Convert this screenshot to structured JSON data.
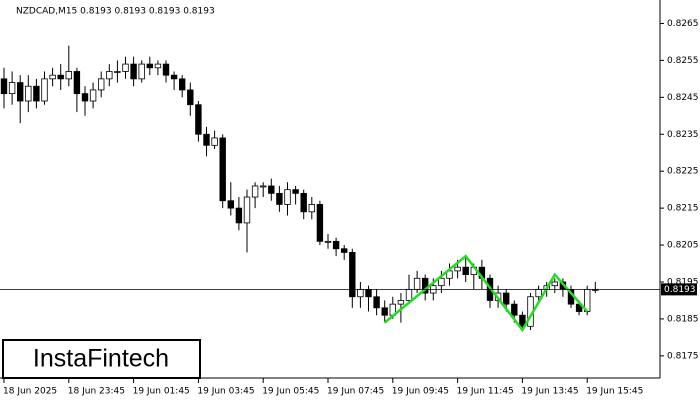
{
  "chart_data": {
    "type": "candlestick",
    "title": "NZDCAD,M15  0.8193 0.8193 0.8193 0.8193",
    "watermark": "InstaFintech",
    "categories": [
      "18 Jun 2025",
      null,
      null,
      null,
      null,
      null,
      null,
      null,
      "18 Jun 23:45",
      null,
      null,
      null,
      null,
      null,
      null,
      null,
      "19 Jun 01:45",
      null,
      null,
      null,
      null,
      null,
      null,
      null,
      "19 Jun 03:45",
      null,
      null,
      null,
      null,
      null,
      null,
      null,
      "19 Jun 05:45",
      null,
      null,
      null,
      null,
      null,
      null,
      null,
      "19 Jun 07:45",
      null,
      null,
      null,
      null,
      null,
      null,
      null,
      "19 Jun 09:45",
      null,
      null,
      null,
      null,
      null,
      null,
      null,
      "19 Jun 11:45",
      null,
      null,
      null,
      null,
      null,
      null,
      null,
      "19 Jun 13:45",
      null,
      null,
      null,
      null,
      null,
      null,
      null,
      "19 Jun 15:45",
      null
    ],
    "open": [
      0.825,
      0.8246,
      0.8249,
      0.8244,
      0.8248,
      0.8244,
      0.825,
      0.8251,
      0.825,
      0.8252,
      0.8246,
      0.8244,
      0.8247,
      0.825,
      0.8252,
      0.8252,
      0.8254,
      0.825,
      0.8254,
      0.8253,
      0.8254,
      0.8251,
      0.825,
      0.8247,
      0.8243,
      0.8235,
      0.8232,
      0.8234,
      0.8217,
      0.8215,
      0.8211,
      0.8218,
      0.8221,
      0.8221,
      0.8219,
      0.8216,
      0.822,
      0.8219,
      0.8214,
      0.8216,
      0.8206,
      0.8206,
      0.8204,
      0.8203,
      0.8191,
      0.8193,
      0.8191,
      0.8188,
      0.8186,
      0.8189,
      0.819,
      0.8193,
      0.8196,
      0.8192,
      0.8194,
      0.8196,
      0.8198,
      0.8199,
      0.8197,
      0.8199,
      0.8196,
      0.819,
      0.8192,
      0.8189,
      0.8186,
      0.8183,
      0.8191,
      0.8193,
      0.8194,
      0.8195,
      0.8193,
      0.8189,
      0.8187,
      0.8193
    ],
    "high": [
      0.8253,
      0.8252,
      0.8251,
      0.8251,
      0.825,
      0.8252,
      0.8253,
      0.8254,
      0.8259,
      0.8253,
      0.8248,
      0.8249,
      0.8252,
      0.8254,
      0.8255,
      0.8256,
      0.8256,
      0.8255,
      0.8256,
      0.8255,
      0.8255,
      0.8252,
      0.8251,
      0.8249,
      0.8244,
      0.8237,
      0.8236,
      0.8235,
      0.8222,
      0.8218,
      0.822,
      0.8222,
      0.8222,
      0.8223,
      0.8221,
      0.8222,
      0.8221,
      0.822,
      0.8218,
      0.8217,
      0.8208,
      0.8207,
      0.8205,
      0.8204,
      0.8195,
      0.8194,
      0.8193,
      0.819,
      0.8191,
      0.8192,
      0.8197,
      0.8198,
      0.8197,
      0.8196,
      0.8198,
      0.82,
      0.8201,
      0.8202,
      0.82,
      0.8201,
      0.8197,
      0.8194,
      0.8193,
      0.819,
      0.8187,
      0.8192,
      0.8194,
      0.8195,
      0.8196,
      0.8196,
      0.8194,
      0.819,
      0.8194,
      0.8195
    ],
    "low": [
      0.8242,
      0.8243,
      0.8238,
      0.8241,
      0.8242,
      0.8243,
      0.8248,
      0.8247,
      0.8248,
      0.8241,
      0.824,
      0.8242,
      0.8245,
      0.8248,
      0.8249,
      0.825,
      0.8248,
      0.8249,
      0.8251,
      0.8251,
      0.8249,
      0.8247,
      0.8245,
      0.824,
      0.8233,
      0.8229,
      0.8231,
      0.8215,
      0.8213,
      0.8209,
      0.8203,
      0.8215,
      0.8218,
      0.8217,
      0.8214,
      0.8213,
      0.8216,
      0.8212,
      0.8212,
      0.8205,
      0.8204,
      0.8202,
      0.8201,
      0.8188,
      0.8188,
      0.8187,
      0.8186,
      0.8184,
      0.8185,
      0.8184,
      0.8189,
      0.8192,
      0.819,
      0.819,
      0.8192,
      0.8194,
      0.8196,
      0.8195,
      0.8193,
      0.8193,
      0.8188,
      0.8188,
      0.8187,
      0.8184,
      0.8182,
      0.8182,
      0.819,
      0.8191,
      0.8192,
      0.8191,
      0.8188,
      0.8186,
      0.8186,
      0.8192
    ],
    "close": [
      0.8246,
      0.8249,
      0.8244,
      0.8248,
      0.8244,
      0.825,
      0.8251,
      0.825,
      0.8252,
      0.8246,
      0.8244,
      0.8247,
      0.825,
      0.8252,
      0.8252,
      0.8254,
      0.825,
      0.8254,
      0.8253,
      0.8254,
      0.8251,
      0.825,
      0.8247,
      0.8243,
      0.8235,
      0.8232,
      0.8234,
      0.8217,
      0.8215,
      0.8211,
      0.8218,
      0.8221,
      0.8221,
      0.8219,
      0.8216,
      0.822,
      0.8219,
      0.8214,
      0.8216,
      0.8206,
      0.8206,
      0.8204,
      0.8203,
      0.8191,
      0.8193,
      0.8191,
      0.8188,
      0.8186,
      0.8189,
      0.819,
      0.8193,
      0.8196,
      0.8192,
      0.8194,
      0.8196,
      0.8198,
      0.8199,
      0.8197,
      0.8199,
      0.8196,
      0.819,
      0.8192,
      0.8189,
      0.8186,
      0.8183,
      0.8191,
      0.8193,
      0.8194,
      0.8195,
      0.8193,
      0.8189,
      0.8187,
      0.8193,
      0.8193
    ],
    "current_price": 0.8193,
    "ylim": [
      0.8169,
      0.827
    ],
    "yticks": [
      0.8175,
      0.8185,
      0.8195,
      0.8205,
      0.8215,
      0.8225,
      0.8235,
      0.8245,
      0.8255,
      0.8265
    ]
  }
}
